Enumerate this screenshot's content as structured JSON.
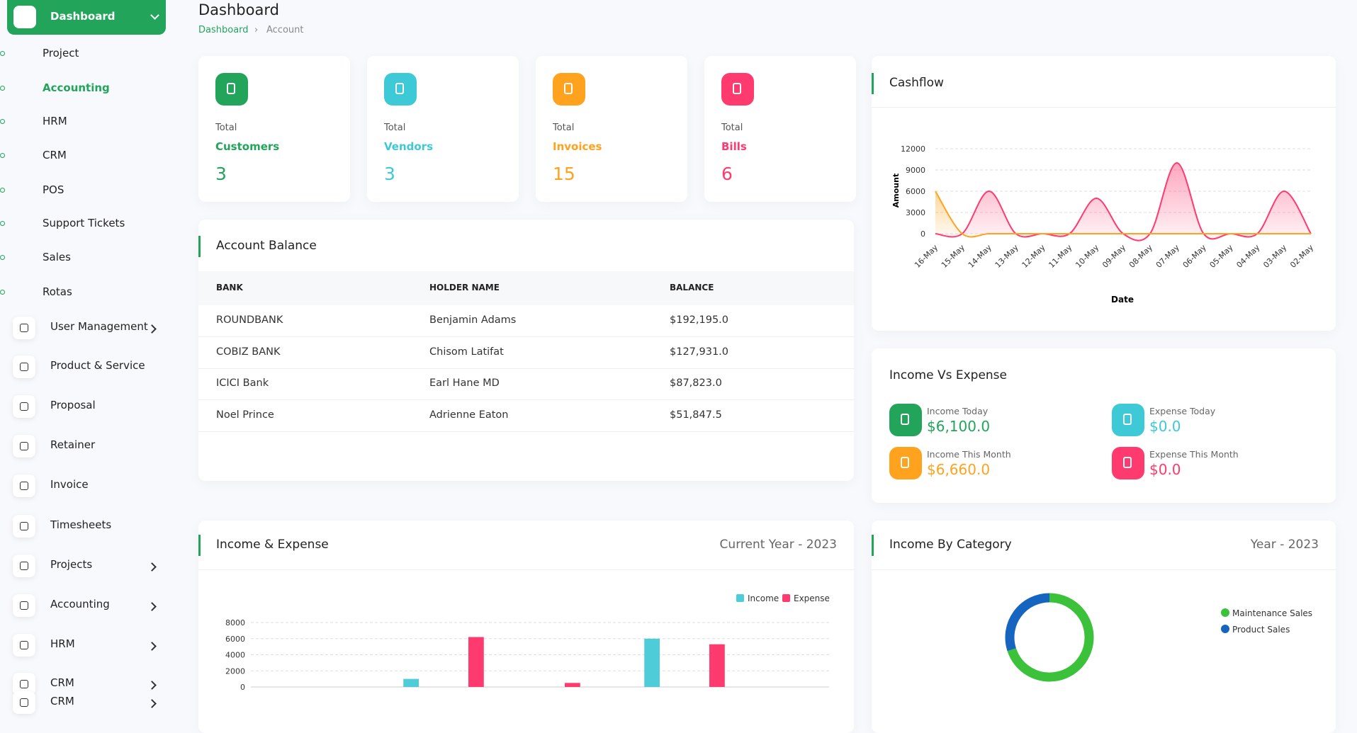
{
  "header": {
    "title": "Dashboard",
    "breadcrumb": [
      "Dashboard",
      "Account"
    ]
  },
  "sidebar": {
    "top": "Dashboard",
    "sub": [
      "Project",
      "Accounting",
      "HRM",
      "CRM",
      "POS",
      "Support Tickets",
      "Sales",
      "Rotas"
    ],
    "items": [
      "User Management",
      "Product & Service",
      "Proposal",
      "Retainer",
      "Invoice",
      "Timesheets",
      "Projects",
      "Accounting",
      "HRM",
      "CRM",
      "CRM"
    ]
  },
  "stats": [
    {
      "label": "Total",
      "name": "Customers",
      "value": "3"
    },
    {
      "label": "Total",
      "name": "Vendors",
      "value": "3"
    },
    {
      "label": "Total",
      "name": "Invoices",
      "value": "15"
    },
    {
      "label": "Total",
      "name": "Bills",
      "value": "6"
    }
  ],
  "account_balance": {
    "title": "Account Balance",
    "columns": [
      "BANK",
      "HOLDER NAME",
      "BALANCE"
    ],
    "rows": [
      [
        "ROUNDBANK",
        "Benjamin Adams",
        "$192,195.0"
      ],
      [
        "COBIZ BANK",
        "Chisom Latifat",
        "$127,931.0"
      ],
      [
        "ICICI Bank",
        "Earl Hane MD",
        "$87,823.0"
      ],
      [
        "Noel Prince",
        "Adrienne Eaton",
        "$51,847.5"
      ]
    ]
  },
  "income_vs_expense": {
    "title": "Income Vs Expense",
    "items": [
      {
        "label": "Income Today",
        "value": "$6,100.0"
      },
      {
        "label": "Expense Today",
        "value": "$0.0"
      },
      {
        "label": "Income This Month",
        "value": "$6,660.0"
      },
      {
        "label": "Expense This Month",
        "value": "$0.0"
      }
    ]
  },
  "chart_data": [
    {
      "type": "area",
      "title": "Cashflow",
      "xlabel": "Date",
      "ylabel": "Amount",
      "categories": [
        "16-May",
        "15-May",
        "14-May",
        "13-May",
        "12-May",
        "11-May",
        "10-May",
        "09-May",
        "08-May",
        "07-May",
        "06-May",
        "05-May",
        "04-May",
        "03-May",
        "02-May"
      ],
      "series": [
        {
          "color": "#ff3a6e",
          "values": [
            0,
            0,
            6000,
            0,
            0,
            0,
            5000,
            0,
            0,
            10000,
            0,
            0,
            0,
            6000,
            0
          ]
        },
        {
          "color": "#ffa21d",
          "values": [
            6000,
            0,
            0,
            0,
            0,
            0,
            0,
            0,
            0,
            0,
            0,
            0,
            0,
            0,
            0
          ]
        }
      ],
      "ylim": [
        0,
        12000
      ],
      "yticks": [
        0,
        3000,
        6000,
        9000,
        12000
      ],
      "grid": true
    },
    {
      "type": "bar",
      "title": "Income & Expense",
      "subtitle": "Current Year - 2023",
      "categories": [
        null,
        null,
        null,
        null,
        null,
        null,
        null,
        null,
        null,
        null,
        null,
        null
      ],
      "series": [
        {
          "name": "Income",
          "color": "#4ecdd9",
          "values": [
            0,
            0,
            0,
            1000,
            0,
            0,
            0,
            0,
            6000,
            0,
            0,
            0
          ]
        },
        {
          "name": "Expense",
          "color": "#ff3a6e",
          "values": [
            0,
            0,
            0,
            0,
            6200,
            0,
            500,
            0,
            0,
            5300,
            0,
            0
          ]
        }
      ],
      "ylim": [
        0,
        8000
      ],
      "yticks": [
        0,
        2000,
        4000,
        6000,
        8000
      ],
      "grid": true
    },
    {
      "type": "pie",
      "title": "Income By Category",
      "subtitle": "Year - 2023",
      "categories": [
        "Maintenance Sales",
        "Product Sales"
      ],
      "values": [
        70,
        30
      ],
      "colors": [
        "#3cc13b",
        "#1565c0"
      ]
    }
  ]
}
